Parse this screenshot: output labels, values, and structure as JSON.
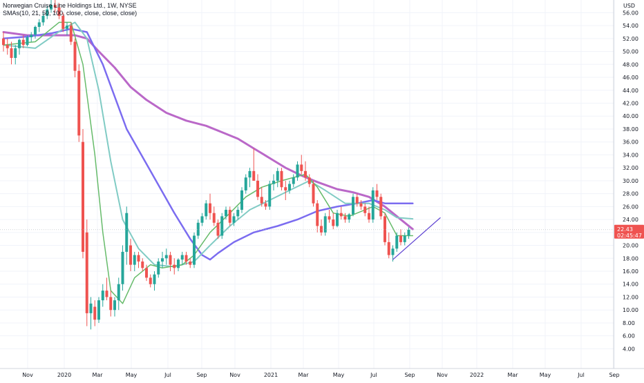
{
  "title": "Norwegian Cruise Line Holdings Ltd., 1W, NYSE",
  "indicator_label": "SMAs(10, 21, 50, 100, close, close, close, close)",
  "currency": "USD",
  "price_badge": {
    "value": "22.43",
    "time": "02:45:47",
    "color": "#ef5350"
  },
  "colors": {
    "up": "#26a69a",
    "down": "#ef5350",
    "sma10": "#66bb6a",
    "sma21": "#80cbc4",
    "sma50": "#7b6cf0",
    "sma100": "#ba68c8",
    "trend": "#5b3fd1"
  },
  "chart_data": {
    "type": "candlestick",
    "ylim": [
      3,
      57
    ],
    "y_ticks": [
      "4.00",
      "6.00",
      "8.00",
      "10.00",
      "12.00",
      "14.00",
      "16.00",
      "18.00",
      "20.00",
      "22.00",
      "24.00",
      "26.00",
      "28.00",
      "30.00",
      "32.00",
      "34.00",
      "36.00",
      "38.00",
      "40.00",
      "42.00",
      "44.00",
      "46.00",
      "48.00",
      "50.00",
      "52.00",
      "54.00",
      "56.00"
    ],
    "x_ticks": [
      "Nov",
      "2020",
      "Mar",
      "May",
      "Jul",
      "Sep",
      "Nov",
      "2021",
      "Mar",
      "May",
      "Jul",
      "Sep",
      "Nov",
      "2022",
      "Mar",
      "May",
      "Jul",
      "Sep"
    ],
    "candles": [
      [
        52,
        53,
        50,
        51
      ],
      [
        51,
        52,
        49.5,
        50.5
      ],
      [
        50.5,
        51.5,
        48,
        49
      ],
      [
        49,
        51,
        48,
        50.5
      ],
      [
        50.5,
        52,
        49.5,
        51.8
      ],
      [
        51.8,
        52.5,
        50.5,
        51
      ],
      [
        51,
        52.5,
        50.8,
        52.2
      ],
      [
        52.2,
        53,
        51.5,
        52.6
      ],
      [
        52.6,
        54,
        52,
        53.8
      ],
      [
        53.8,
        55,
        53,
        54.5
      ],
      [
        54.5,
        56,
        54,
        55.5
      ],
      [
        55.5,
        57,
        55,
        56.5
      ],
      [
        56.5,
        58,
        56,
        57.2
      ],
      [
        57.2,
        58,
        56,
        56.8
      ],
      [
        56.8,
        57.5,
        55,
        55.5
      ],
      [
        55.5,
        56,
        53,
        53.5
      ],
      [
        53.5,
        54.5,
        52.5,
        54
      ],
      [
        54,
        54.5,
        51,
        51.5
      ],
      [
        51.5,
        52,
        46,
        47
      ],
      [
        47,
        48,
        36,
        37
      ],
      [
        36,
        38,
        18,
        19
      ],
      [
        22,
        24,
        7.5,
        9.5
      ],
      [
        9.5,
        12,
        7,
        11
      ],
      [
        10.5,
        11.5,
        7.5,
        8.5
      ],
      [
        8.5,
        12,
        8,
        11.5
      ],
      [
        11.5,
        14,
        10.5,
        13
      ],
      [
        13,
        15,
        11.5,
        12
      ],
      [
        12,
        13,
        9,
        10
      ],
      [
        10,
        12,
        9,
        11.5
      ],
      [
        11.5,
        15,
        10,
        14
      ],
      [
        14,
        20,
        13,
        19
      ],
      [
        19,
        26,
        17,
        25
      ],
      [
        20,
        21,
        16,
        17
      ],
      [
        17,
        19,
        16,
        18.5
      ],
      [
        18.5,
        19,
        16.5,
        17.5
      ],
      [
        17.5,
        18,
        16,
        16.5
      ],
      [
        16.5,
        17,
        14.5,
        15
      ],
      [
        15,
        15.5,
        13.5,
        14
      ],
      [
        14,
        16,
        13,
        15.5
      ],
      [
        15.5,
        18,
        15,
        17.5
      ],
      [
        17.5,
        19,
        16.5,
        18
      ],
      [
        18,
        19.5,
        17,
        18.5
      ],
      [
        18.5,
        19,
        16,
        17
      ],
      [
        17,
        18,
        15.5,
        16.5
      ],
      [
        16.5,
        18,
        16,
        17.8
      ],
      [
        17.8,
        19,
        17,
        18.5
      ],
      [
        18.5,
        19,
        17,
        17.5
      ],
      [
        17.5,
        18,
        16.5,
        17
      ],
      [
        17,
        22,
        16.5,
        21.5
      ],
      [
        21.5,
        24,
        21,
        23.5
      ],
      [
        23.5,
        25,
        23,
        24.5
      ],
      [
        24.5,
        27,
        24,
        26.5
      ],
      [
        26.5,
        28,
        24,
        25
      ],
      [
        25,
        26,
        23,
        23.5
      ],
      [
        23.5,
        24,
        21,
        21.5
      ],
      [
        21.5,
        25,
        21,
        24.5
      ],
      [
        24.5,
        26,
        24,
        25.5
      ],
      [
        25.5,
        26,
        23,
        23.5
      ],
      [
        23.5,
        25,
        23,
        24.5
      ],
      [
        24.5,
        26,
        24,
        25.5
      ],
      [
        25.5,
        29,
        25,
        28.5
      ],
      [
        28.5,
        31,
        28,
        30.5
      ],
      [
        30.5,
        32,
        29,
        31.5
      ],
      [
        31.5,
        35,
        30,
        30
      ],
      [
        30,
        31,
        27,
        27.5
      ],
      [
        27.5,
        29,
        26,
        26.5
      ],
      [
        26.5,
        27,
        25.5,
        26
      ],
      [
        26,
        30,
        25.5,
        29.5
      ],
      [
        29.5,
        31,
        28.5,
        30
      ],
      [
        30,
        32,
        29,
        31.5
      ],
      [
        31.5,
        32,
        28.5,
        29
      ],
      [
        29,
        30,
        27,
        28.5
      ],
      [
        28.5,
        30,
        28,
        29.5
      ],
      [
        29.5,
        31,
        29,
        30.5
      ],
      [
        30.5,
        33,
        30,
        32.5
      ],
      [
        32.5,
        34,
        31,
        31.5
      ],
      [
        31.5,
        33,
        30,
        30.5
      ],
      [
        30.5,
        31,
        29,
        29.5
      ],
      [
        29.5,
        30,
        26,
        26.5
      ],
      [
        26.5,
        27,
        22,
        23
      ],
      [
        23,
        24,
        21.5,
        22
      ],
      [
        22,
        25,
        21.5,
        24.5
      ],
      [
        24.5,
        25.5,
        23.5,
        24
      ],
      [
        24,
        25,
        22.5,
        23
      ],
      [
        23,
        25.5,
        22.8,
        25
      ],
      [
        25,
        26,
        24,
        24.5
      ],
      [
        24.5,
        25,
        23.5,
        24
      ],
      [
        24,
        25,
        23.5,
        24.8
      ],
      [
        24.8,
        28,
        24.5,
        27.5
      ],
      [
        27.5,
        28,
        26,
        26.5
      ],
      [
        26.5,
        27,
        25.5,
        26
      ],
      [
        26,
        26.5,
        24.5,
        25
      ],
      [
        25,
        26,
        23.5,
        24
      ],
      [
        24,
        29,
        23.5,
        28.5
      ],
      [
        28.5,
        29.5,
        27,
        27.5
      ],
      [
        27.5,
        28,
        24,
        24.5
      ],
      [
        24.5,
        25,
        20,
        20.5
      ],
      [
        20.5,
        22,
        18,
        18.5
      ],
      [
        18.5,
        20,
        17.5,
        19.5
      ],
      [
        19.5,
        22,
        19,
        21.5
      ],
      [
        21.5,
        22.5,
        20,
        20.5
      ],
      [
        20.5,
        22,
        20,
        21.5
      ],
      [
        21.5,
        22.8,
        21,
        22.43
      ]
    ],
    "sma10": [
      [
        0,
        51
      ],
      [
        8,
        51.5
      ],
      [
        14,
        54.5
      ],
      [
        17,
        54.5
      ],
      [
        20,
        48
      ],
      [
        23,
        34
      ],
      [
        25,
        22
      ],
      [
        27,
        13
      ],
      [
        30,
        11
      ],
      [
        33,
        15
      ],
      [
        37,
        17
      ],
      [
        40,
        16.5
      ],
      [
        45,
        17
      ],
      [
        48,
        18.5
      ],
      [
        52,
        22
      ],
      [
        57,
        25
      ],
      [
        61,
        27.5
      ],
      [
        65,
        29
      ],
      [
        70,
        30
      ],
      [
        76,
        31
      ],
      [
        79,
        29
      ],
      [
        83,
        25
      ],
      [
        87,
        24.5
      ],
      [
        93,
        26
      ],
      [
        96,
        25
      ],
      [
        99,
        21.5
      ],
      [
        103,
        21.5
      ]
    ],
    "sma21": [
      [
        0,
        51
      ],
      [
        8,
        50.5
      ],
      [
        15,
        53.5
      ],
      [
        18,
        54.5
      ],
      [
        21,
        52
      ],
      [
        24,
        44
      ],
      [
        27,
        33
      ],
      [
        30,
        24
      ],
      [
        34,
        19.5
      ],
      [
        38,
        17
      ],
      [
        43,
        16.7
      ],
      [
        48,
        17.5
      ],
      [
        52,
        20
      ],
      [
        57,
        23
      ],
      [
        62,
        25.5
      ],
      [
        67,
        27
      ],
      [
        72,
        28.5
      ],
      [
        77,
        30
      ],
      [
        81,
        28.5
      ],
      [
        86,
        26.5
      ],
      [
        92,
        26.5
      ],
      [
        96,
        25.5
      ],
      [
        99,
        24.3
      ],
      [
        103,
        24.1
      ]
    ],
    "sma50": [
      [
        0,
        52
      ],
      [
        6,
        52.3
      ],
      [
        12,
        52.8
      ],
      [
        17,
        53.5
      ],
      [
        21,
        53
      ],
      [
        25,
        48
      ],
      [
        31,
        38
      ],
      [
        37,
        31.5
      ],
      [
        43,
        25
      ],
      [
        47,
        21
      ],
      [
        50,
        18.5
      ],
      [
        52,
        17.8
      ],
      [
        54,
        18.8
      ],
      [
        58,
        20.5
      ],
      [
        63,
        22
      ],
      [
        69,
        23
      ],
      [
        74,
        24
      ],
      [
        79,
        25.3
      ],
      [
        84,
        26
      ],
      [
        89,
        26.5
      ],
      [
        93,
        27
      ],
      [
        96,
        26.5
      ],
      [
        100,
        26.5
      ],
      [
        103,
        26.5
      ]
    ],
    "sma100": [
      [
        0,
        53
      ],
      [
        6,
        52.5
      ],
      [
        12,
        52.5
      ],
      [
        18,
        52.5
      ],
      [
        21,
        52
      ],
      [
        24,
        50
      ],
      [
        28,
        47.5
      ],
      [
        32,
        44.5
      ],
      [
        36,
        42.5
      ],
      [
        41,
        40.5
      ],
      [
        46,
        39.3
      ],
      [
        51,
        38.5
      ],
      [
        55,
        37.5
      ],
      [
        59,
        36.5
      ],
      [
        63,
        35
      ],
      [
        67,
        33.5
      ],
      [
        71,
        32
      ],
      [
        75,
        30.8
      ],
      [
        79,
        29.8
      ],
      [
        84,
        28.7
      ],
      [
        88,
        28.2
      ],
      [
        92,
        27.5
      ],
      [
        96,
        26
      ],
      [
        100,
        24
      ],
      [
        103,
        22.5
      ]
    ],
    "trendlines": [
      {
        "from": [
          98,
          17.8
        ],
        "to": [
          110,
          24.3
        ]
      }
    ]
  }
}
